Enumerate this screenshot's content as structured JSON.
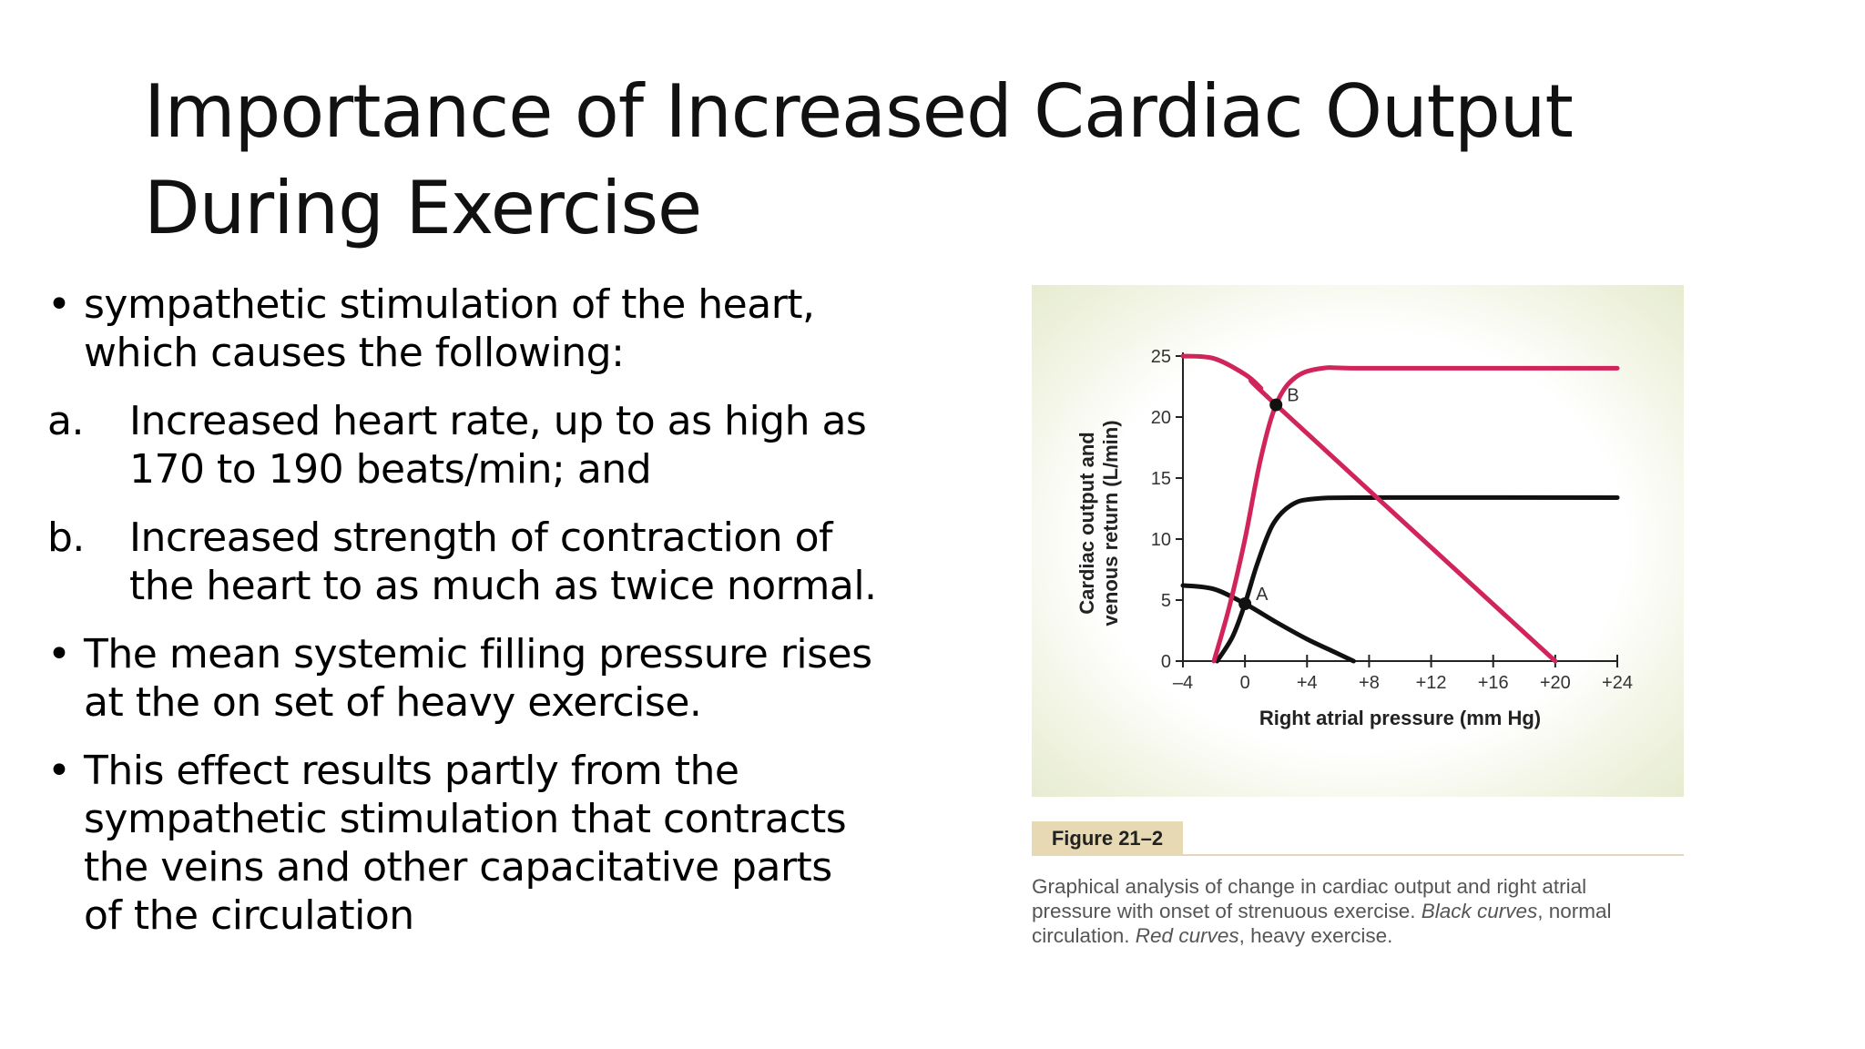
{
  "title": {
    "line1": "Importance of Increased Cardiac Output",
    "line2": "During Exercise"
  },
  "body": {
    "items": [
      {
        "marker": "•",
        "lines": [
          "sympathetic  stimulation of the heart,",
          "which causes the following:"
        ]
      },
      {
        "marker": "a.",
        "lines": [
          "Increased heart rate, up to as high as",
          "170 to 190 beats/min; and"
        ]
      },
      {
        "marker": "b.",
        "lines": [
          "Increased strength of contraction of",
          "the heart to as much as twice normal."
        ]
      },
      {
        "marker": "•",
        "lines": [
          "The mean systemic filling pressure rises",
          "at the on set of heavy exercise."
        ]
      },
      {
        "marker": "•",
        "lines": [
          "This effect results partly from the",
          "sympathetic stimulation that contracts",
          "the veins and other capacitative parts",
          "of the circulation"
        ]
      }
    ]
  },
  "figure": {
    "label": "Figure 21–2",
    "caption": {
      "l1": "Graphical analysis of change in cardiac output and right atrial",
      "l2": "pressure with onset of strenuous exercise. ",
      "l2_italic": "Black curves",
      "l2_end": ", normal",
      "l3": "circulation. ",
      "l3_italic": "Red curves",
      "l3_end": ", heavy exercise."
    }
  },
  "chart_data": {
    "type": "line",
    "xlabel": "Right atrial pressure (mm Hg)",
    "ylabel": "Cardiac output and venous return (L/min)",
    "xlim": [
      -4,
      24
    ],
    "ylim": [
      0,
      25
    ],
    "x_ticks": [
      "–4",
      "0",
      "+4",
      "+8",
      "+12",
      "+16",
      "+20",
      "+24"
    ],
    "y_ticks": [
      "0",
      "5",
      "10",
      "15",
      "20",
      "25"
    ],
    "colors": {
      "normal": "#111111",
      "exercise": "#d0245a"
    },
    "series": [
      {
        "key": "normal_cardiac_output",
        "color": "#111111",
        "points": [
          [
            -1.8,
            0
          ],
          [
            -0.8,
            2
          ],
          [
            0,
            4.7
          ],
          [
            0.8,
            8
          ],
          [
            1.8,
            11.2
          ],
          [
            3,
            12.8
          ],
          [
            4.5,
            13.3
          ],
          [
            8,
            13.4
          ],
          [
            24,
            13.4
          ]
        ]
      },
      {
        "key": "normal_venous_return",
        "color": "#111111",
        "points": [
          [
            -4,
            6.2
          ],
          [
            -2,
            5.9
          ],
          [
            0,
            4.7
          ],
          [
            2,
            3.2
          ],
          [
            4,
            1.8
          ],
          [
            5.5,
            0.9
          ],
          [
            7,
            0
          ]
        ]
      },
      {
        "key": "exercise_cardiac_output",
        "color": "#d0245a",
        "points": [
          [
            -2,
            0
          ],
          [
            -1,
            4.5
          ],
          [
            0,
            10
          ],
          [
            1,
            16.5
          ],
          [
            2,
            21
          ],
          [
            3.2,
            23.2
          ],
          [
            5,
            24
          ],
          [
            8,
            24
          ],
          [
            24,
            24
          ]
        ]
      },
      {
        "key": "exercise_venous_return",
        "color": "#d0245a",
        "points": [
          [
            -4,
            25
          ],
          [
            -2,
            24.8
          ],
          [
            0,
            23.5
          ],
          [
            1,
            22.4
          ],
          [
            2,
            21
          ],
          [
            20,
            0
          ]
        ]
      }
    ],
    "annotations": [
      {
        "label": "A",
        "x": 0,
        "y": 4.7
      },
      {
        "label": "B",
        "x": 2,
        "y": 21
      }
    ]
  }
}
